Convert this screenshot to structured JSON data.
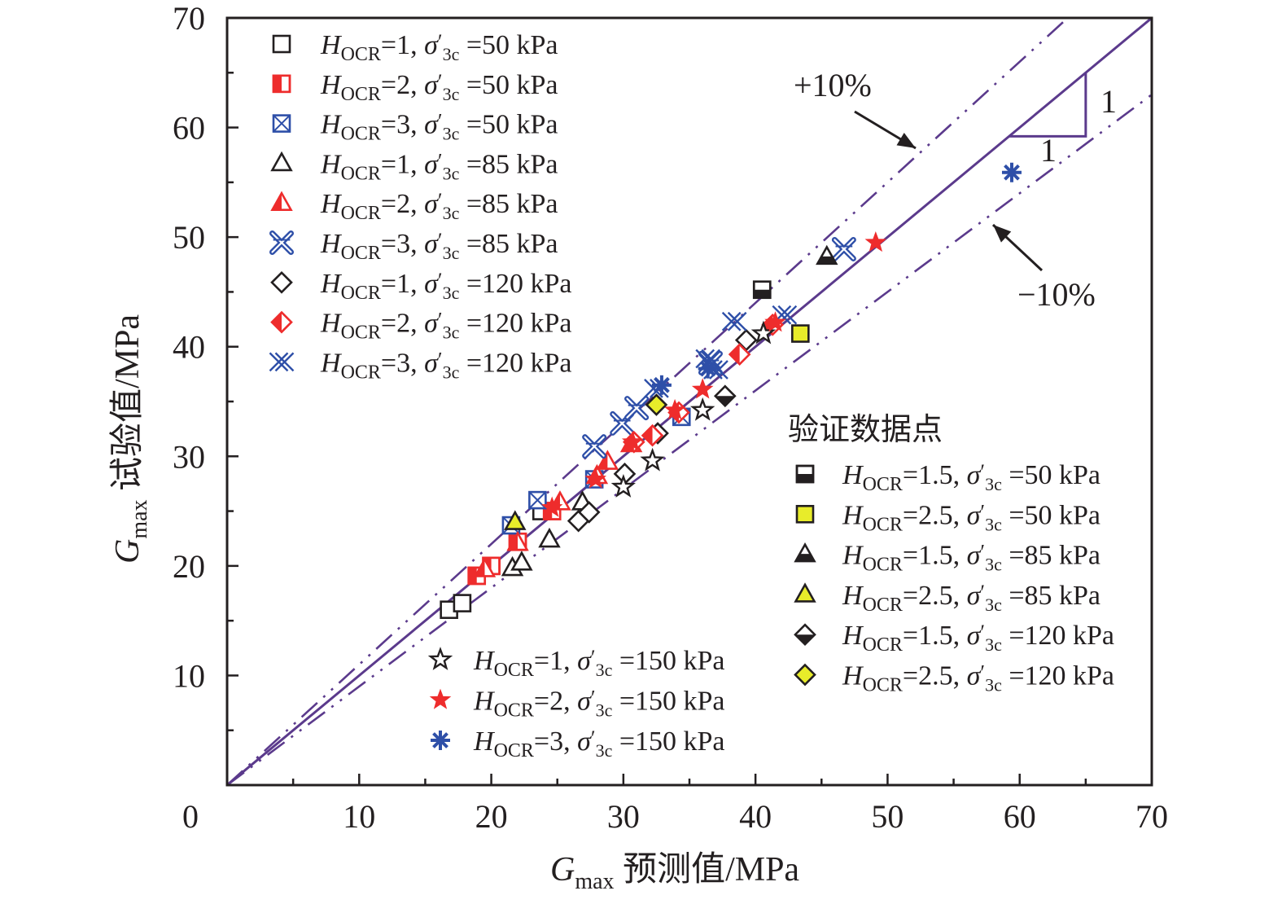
{
  "chart_data": {
    "type": "scatter",
    "xlabel": {
      "main": "G",
      "sub": "max",
      "rest": " 预测值/MPa"
    },
    "ylabel": {
      "main": "G",
      "sub": "max",
      "rest": " 试验值/MPa"
    },
    "xlim": [
      0,
      70
    ],
    "ylim": [
      0,
      70
    ],
    "x_ticks": [
      0,
      10,
      20,
      30,
      40,
      50,
      60,
      70
    ],
    "y_ticks": [
      10,
      20,
      30,
      40,
      50,
      60,
      70
    ],
    "grid": false,
    "reference_lines": [
      {
        "label": "",
        "slope": 1.0,
        "style": "solid"
      },
      {
        "label": "+10%",
        "slope": 1.1,
        "style": "dash-dot"
      },
      {
        "label": "−10%",
        "slope": 0.9,
        "style": "dash-dot"
      }
    ],
    "slope_triangle": {
      "horizontal_label": "1",
      "vertical_label": "1"
    },
    "validation_legend_title": "验证数据点",
    "colors": {
      "line": "#5b3a8c",
      "red": "#ee2c2c",
      "blue": "#2e4fa8",
      "black": "#231f20",
      "yellow": "#e8ec2a"
    },
    "series": [
      {
        "name": "1",
        "sigma": "50",
        "marker": "square-open",
        "color": "black",
        "legend": "a",
        "points": [
          [
            16.8,
            16.0
          ],
          [
            17.8,
            16.6
          ],
          [
            23.8,
            25.0
          ]
        ]
      },
      {
        "name": "2",
        "sigma": "50",
        "marker": "square-half",
        "color": "red",
        "legend": "a",
        "points": [
          [
            18.9,
            19.1
          ],
          [
            20.0,
            20.0
          ],
          [
            22.0,
            22.2
          ],
          [
            24.6,
            25.0
          ]
        ]
      },
      {
        "name": "3",
        "sigma": "50",
        "marker": "square-cross",
        "color": "blue",
        "legend": "a",
        "points": [
          [
            21.5,
            23.7
          ],
          [
            23.5,
            26.0
          ],
          [
            27.8,
            27.9
          ],
          [
            34.4,
            33.6
          ]
        ]
      },
      {
        "name": "1",
        "sigma": "85",
        "marker": "triangle-open",
        "color": "black",
        "legend": "a",
        "points": [
          [
            21.6,
            19.8
          ],
          [
            22.3,
            20.3
          ],
          [
            24.4,
            22.4
          ],
          [
            26.9,
            25.8
          ]
        ]
      },
      {
        "name": "2",
        "sigma": "85",
        "marker": "triangle-half",
        "color": "red",
        "legend": "a",
        "points": [
          [
            19.5,
            19.7
          ],
          [
            22.0,
            22.1
          ],
          [
            25.2,
            25.8
          ],
          [
            28.0,
            28.2
          ],
          [
            28.8,
            29.5
          ],
          [
            30.6,
            31.1
          ]
        ]
      },
      {
        "name": "3",
        "sigma": "85",
        "marker": "x-double",
        "color": "blue",
        "legend": "a",
        "points": [
          [
            27.8,
            30.9
          ],
          [
            29.9,
            33.0
          ],
          [
            31.0,
            34.4
          ],
          [
            36.6,
            38.5
          ],
          [
            46.7,
            48.9
          ]
        ]
      },
      {
        "name": "1",
        "sigma": "120",
        "marker": "diamond-open",
        "color": "black",
        "legend": "a",
        "points": [
          [
            26.6,
            24.1
          ],
          [
            27.4,
            24.9
          ],
          [
            30.1,
            28.4
          ],
          [
            32.6,
            32.1
          ],
          [
            39.3,
            40.6
          ]
        ]
      },
      {
        "name": "2",
        "sigma": "120",
        "marker": "diamond-half",
        "color": "red",
        "legend": "a",
        "points": [
          [
            30.8,
            31.3
          ],
          [
            32.2,
            31.9
          ],
          [
            34.2,
            34.0
          ],
          [
            38.8,
            39.3
          ],
          [
            41.3,
            42.0
          ]
        ]
      },
      {
        "name": "3",
        "sigma": "120",
        "marker": "xx",
        "color": "blue",
        "legend": "a",
        "points": [
          [
            32.5,
            36.2
          ],
          [
            36.4,
            38.9
          ],
          [
            37.0,
            37.9
          ],
          [
            38.4,
            42.3
          ],
          [
            42.2,
            42.9
          ]
        ]
      },
      {
        "name": "1",
        "sigma": "150",
        "marker": "star-open",
        "color": "black",
        "legend": "b",
        "points": [
          [
            30.0,
            27.2
          ],
          [
            32.2,
            29.6
          ],
          [
            36.0,
            34.2
          ],
          [
            40.6,
            41.2
          ]
        ]
      },
      {
        "name": "2",
        "sigma": "150",
        "marker": "star-filled",
        "color": "red",
        "legend": "b",
        "points": [
          [
            24.6,
            25.3
          ],
          [
            27.9,
            27.9
          ],
          [
            30.7,
            31.3
          ],
          [
            33.9,
            34.2
          ],
          [
            36.0,
            36.1
          ],
          [
            41.5,
            42.2
          ],
          [
            49.1,
            49.5
          ]
        ]
      },
      {
        "name": "3",
        "sigma": "150",
        "marker": "asterisk",
        "color": "blue",
        "legend": "b",
        "points": [
          [
            32.9,
            36.5
          ],
          [
            36.4,
            38.0
          ],
          [
            59.4,
            55.9
          ]
        ]
      },
      {
        "name": "1.5",
        "sigma": "50",
        "marker": "square-halfblack",
        "color": "black",
        "legend": "c",
        "points": [
          [
            40.5,
            45.2
          ]
        ]
      },
      {
        "name": "2.5",
        "sigma": "50",
        "marker": "square-yellow",
        "color": "yellow",
        "legend": "c",
        "points": [
          [
            43.4,
            41.2
          ]
        ]
      },
      {
        "name": "1.5",
        "sigma": "85",
        "marker": "triangle-halfblack",
        "color": "black",
        "legend": "c",
        "points": [
          [
            45.4,
            48.2
          ]
        ]
      },
      {
        "name": "2.5",
        "sigma": "85",
        "marker": "triangle-yellow",
        "color": "yellow",
        "legend": "c",
        "points": [
          [
            21.8,
            24.0
          ]
        ]
      },
      {
        "name": "1.5",
        "sigma": "120",
        "marker": "diamond-halfblack",
        "color": "black",
        "legend": "c",
        "points": [
          [
            37.7,
            35.5
          ]
        ]
      },
      {
        "name": "2.5",
        "sigma": "120",
        "marker": "diamond-yellow",
        "color": "yellow",
        "legend": "c",
        "points": [
          [
            32.5,
            34.7
          ]
        ]
      }
    ]
  }
}
